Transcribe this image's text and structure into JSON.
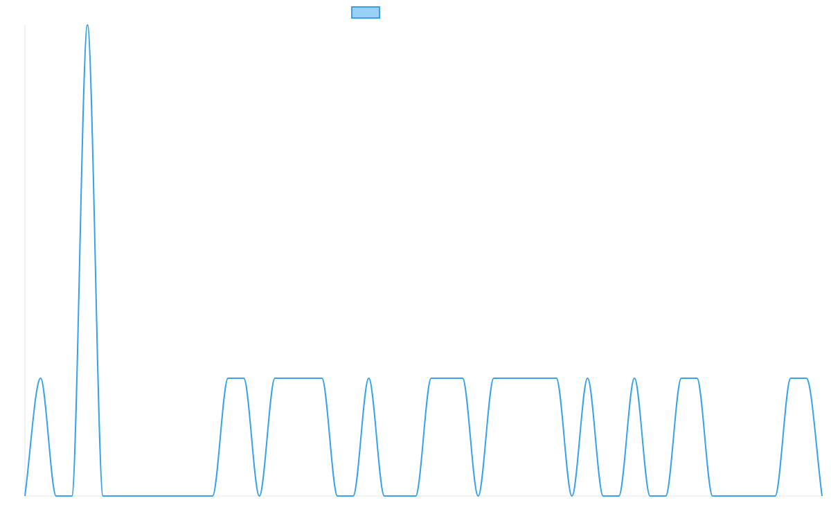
{
  "chart_data": {
    "type": "line",
    "title": "",
    "xlabel": "",
    "ylabel": "",
    "legend": {
      "placement": "top-center",
      "entries": [
        {
          "name": "",
          "swatch_fill": "#9ad0f5",
          "swatch_border": "#36a2eb"
        }
      ]
    },
    "grid": false,
    "x": [
      0,
      1,
      2,
      3,
      4,
      5,
      6,
      7,
      8,
      9,
      10,
      11,
      12,
      13,
      14,
      15,
      16,
      17,
      18,
      19,
      20,
      21,
      22,
      23,
      24,
      25,
      26,
      27,
      28,
      29,
      30,
      31,
      32,
      33,
      34,
      35,
      36,
      37,
      38,
      39,
      40,
      41,
      42,
      43,
      44,
      45,
      46,
      47,
      48,
      49,
      50,
      51
    ],
    "ylim": [
      0,
      4
    ],
    "series": [
      {
        "name": "",
        "color": "#36a2eb",
        "tension": 0.4,
        "values": [
          0,
          1,
          0,
          0,
          4,
          0,
          0,
          0,
          0,
          0,
          0,
          0,
          0,
          1,
          1,
          0,
          1,
          1,
          1,
          1,
          0,
          0,
          1,
          0,
          0,
          0,
          1,
          1,
          1,
          0,
          1,
          1,
          1,
          1,
          1,
          0,
          1,
          0,
          0,
          1,
          0,
          0,
          1,
          1,
          0,
          0,
          0,
          0,
          0,
          1,
          1,
          0
        ]
      }
    ]
  },
  "colors": {
    "series": "#36a2eb",
    "legend_fill": "#9ad0f5",
    "axis_line": "#e5e5e5"
  }
}
